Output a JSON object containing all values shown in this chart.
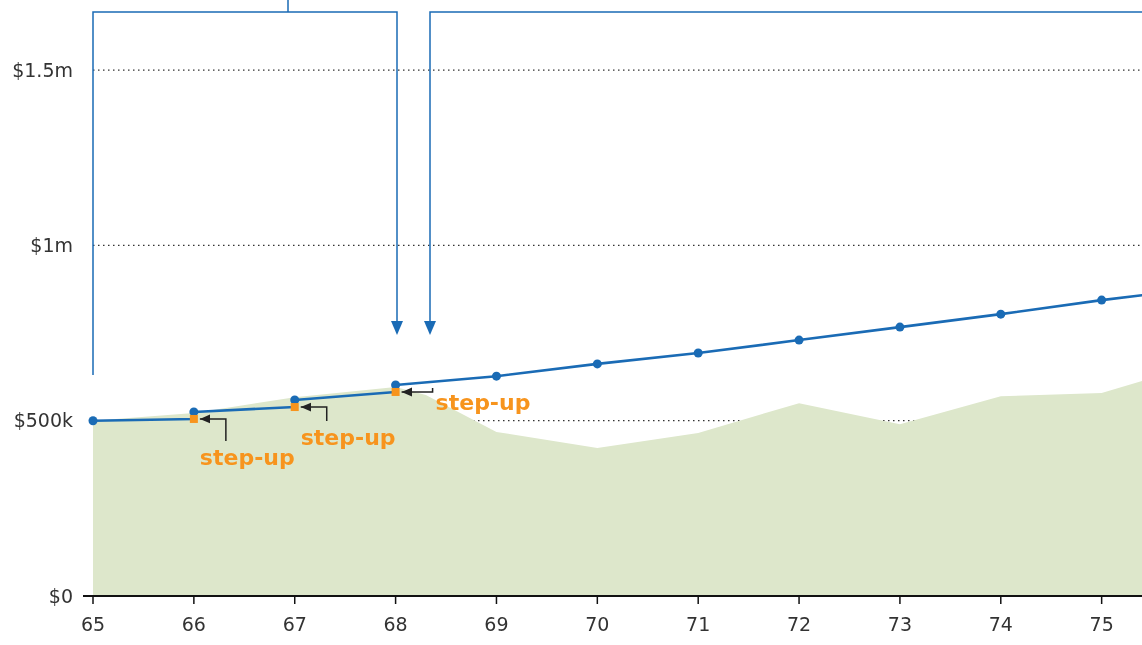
{
  "chart_data": {
    "type": "line",
    "x": [
      65,
      66,
      66,
      67,
      67,
      68,
      68,
      69,
      70,
      71,
      72,
      73,
      74,
      75,
      75.4
    ],
    "series": [
      {
        "type": "area",
        "color": "#dde7cb",
        "x": [
          65,
          66,
          67,
          68,
          68.3,
          69,
          70,
          71,
          72,
          73,
          74,
          75,
          75.4
        ],
        "values": [
          500000,
          522000,
          567000,
          596000,
          573000,
          468000,
          422000,
          465000,
          550000,
          490000,
          570000,
          579000,
          613000
        ]
      },
      {
        "color": "#1a6bb5",
        "marker": "none",
        "line_style": "solid",
        "values": [
          500000,
          505000,
          525000,
          539000,
          559000,
          582000,
          602000,
          627000,
          662000,
          693000,
          730000,
          767000,
          804000,
          844000,
          858000
        ]
      },
      {
        "type": "scatter",
        "color": "#1a6bb5",
        "marker": "circle",
        "x": [
          65,
          66,
          67,
          68,
          69,
          70,
          71,
          72,
          73,
          74,
          75
        ],
        "values": [
          500000,
          525000,
          559000,
          602000,
          627000,
          662000,
          693000,
          730000,
          767000,
          804000,
          844000
        ]
      },
      {
        "type": "scatter",
        "color": "#f7941d",
        "marker": "square",
        "x": [
          66,
          67,
          68
        ],
        "values": [
          505000,
          539000,
          582000
        ]
      }
    ],
    "annotations": [
      {
        "text": "step-up",
        "x": 66,
        "y": 505000
      },
      {
        "text": "step-up",
        "x": 67,
        "y": 539000
      },
      {
        "text": "step-up",
        "x": 68,
        "y": 582000
      }
    ],
    "xlim": [
      65,
      75.4
    ],
    "xticks": [
      65,
      66,
      67,
      68,
      69,
      70,
      71,
      72,
      73,
      74,
      75
    ],
    "ylim": [
      0,
      1700000
    ],
    "yticks": [
      {
        "value": 0,
        "label": "$0"
      },
      {
        "value": 500000,
        "label": "$500k"
      },
      {
        "value": 1000000,
        "label": "$1m"
      },
      {
        "value": 1500000,
        "label": "$1.5m"
      }
    ],
    "grid": "y"
  }
}
